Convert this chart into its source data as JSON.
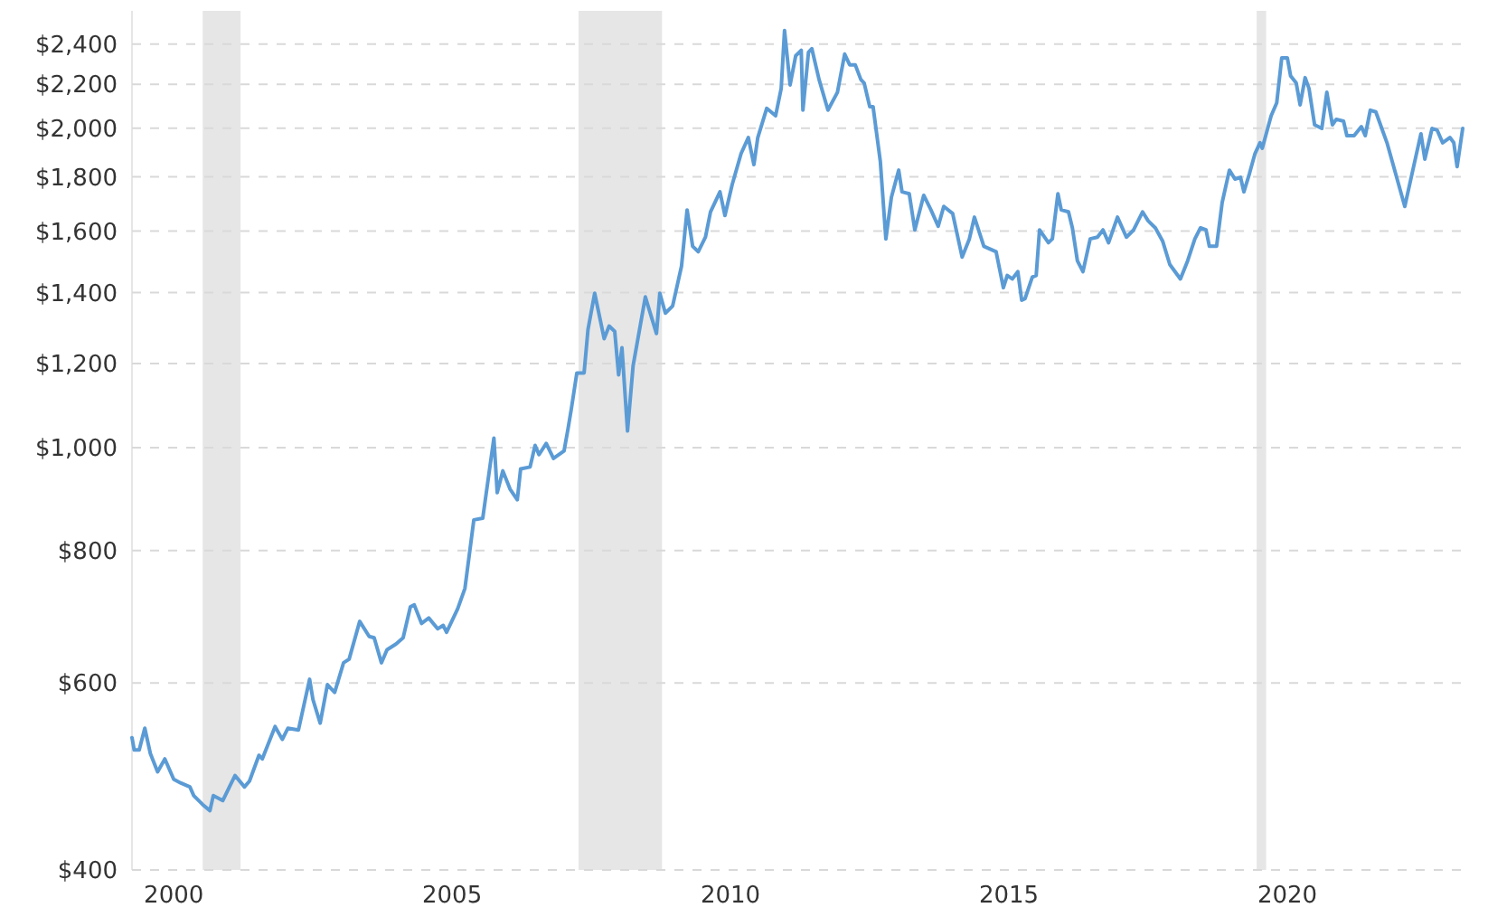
{
  "chart_data": {
    "type": "line",
    "log": true,
    "grid": "y",
    "xlim": [
      1999.25,
      2023.15
    ],
    "xticks": [
      2000,
      2005,
      2010,
      2015,
      2020
    ],
    "ylim": [
      400,
      2580
    ],
    "yticks": [
      {
        "value": 400,
        "label": "$400"
      },
      {
        "value": 600,
        "label": "$600"
      },
      {
        "value": 800,
        "label": "$800"
      },
      {
        "value": 1000,
        "label": "$1,000"
      },
      {
        "value": 1200,
        "label": "$1,200"
      },
      {
        "value": 1400,
        "label": "$1,400"
      },
      {
        "value": 1600,
        "label": "$1,600"
      },
      {
        "value": 1800,
        "label": "$1,800"
      },
      {
        "value": 2000,
        "label": "$2,000"
      },
      {
        "value": 2200,
        "label": "$2,200"
      },
      {
        "value": 2400,
        "label": "$2,400"
      }
    ],
    "bands": [
      {
        "axis": "x",
        "from": 2000.52,
        "to": 2001.2,
        "color": "#e6e6e6"
      },
      {
        "axis": "x",
        "from": 2007.27,
        "to": 2008.77,
        "color": "#e6e6e6"
      },
      {
        "axis": "x",
        "from": 2019.45,
        "to": 2019.62,
        "color": "#e6e6e6"
      }
    ],
    "series": [
      {
        "color": "#5b9bd5",
        "x": [
          1999.25,
          1999.29,
          1999.38,
          1999.48,
          1999.58,
          1999.71,
          1999.84,
          2000.0,
          2000.13,
          2000.29,
          2000.36,
          2000.52,
          2000.65,
          2000.71,
          2000.88,
          2001.1,
          2001.27,
          2001.36,
          2001.53,
          2001.59,
          2001.82,
          2001.95,
          2002.05,
          2002.24,
          2002.44,
          2002.5,
          2002.63,
          2002.76,
          2002.89,
          2003.05,
          2003.15,
          2003.34,
          2003.51,
          2003.6,
          2003.73,
          2003.83,
          2003.99,
          2004.12,
          2004.25,
          2004.32,
          2004.45,
          2004.58,
          2004.74,
          2004.84,
          2004.9,
          2005.1,
          2005.23,
          2005.39,
          2005.55,
          2005.75,
          2005.81,
          2005.91,
          2006.04,
          2006.17,
          2006.23,
          2006.4,
          2006.49,
          2006.56,
          2006.69,
          2006.82,
          2007.01,
          2007.08,
          2007.14,
          2007.24,
          2007.37,
          2007.44,
          2007.56,
          2007.73,
          2007.82,
          2007.92,
          2007.99,
          2008.05,
          2008.15,
          2008.25,
          2008.47,
          2008.67,
          2008.73,
          2008.83,
          2008.96,
          2009.12,
          2009.22,
          2009.32,
          2009.42,
          2009.55,
          2009.64,
          2009.81,
          2009.9,
          2010.03,
          2010.19,
          2010.32,
          2010.42,
          2010.49,
          2010.65,
          2010.81,
          2010.91,
          2010.97,
          2011.07,
          2011.17,
          2011.27,
          2011.3,
          2011.4,
          2011.46,
          2011.59,
          2011.75,
          2011.92,
          2012.05,
          2012.14,
          2012.24,
          2012.34,
          2012.4,
          2012.5,
          2012.56,
          2012.69,
          2012.79,
          2012.89,
          2013.02,
          2013.08,
          2013.21,
          2013.31,
          2013.47,
          2013.6,
          2013.73,
          2013.83,
          2013.99,
          2014.16,
          2014.29,
          2014.38,
          2014.55,
          2014.77,
          2014.9,
          2014.97,
          2015.06,
          2015.16,
          2015.23,
          2015.29,
          2015.42,
          2015.49,
          2015.55,
          2015.71,
          2015.78,
          2015.88,
          2015.94,
          2016.07,
          2016.14,
          2016.23,
          2016.33,
          2016.46,
          2016.59,
          2016.69,
          2016.79,
          2016.95,
          2017.11,
          2017.24,
          2017.4,
          2017.5,
          2017.63,
          2017.76,
          2017.89,
          2018.08,
          2018.21,
          2018.34,
          2018.44,
          2018.54,
          2018.6,
          2018.73,
          2018.83,
          2018.96,
          2019.06,
          2019.16,
          2019.22,
          2019.32,
          2019.42,
          2019.51,
          2019.55,
          2019.71,
          2019.81,
          2019.9,
          2020.0,
          2020.06,
          2020.16,
          2020.23,
          2020.32,
          2020.39,
          2020.49,
          2020.62,
          2020.71,
          2020.81,
          2020.88,
          2021.01,
          2021.07,
          2021.2,
          2021.33,
          2021.4,
          2021.49,
          2021.59,
          2021.79,
          2022.11,
          2022.24,
          2022.4,
          2022.47,
          2022.6,
          2022.69,
          2022.79,
          2022.92,
          2022.99,
          2023.05,
          2023.15
        ],
        "values": [
          533,
          519,
          519,
          544,
          515,
          495,
          509,
          487,
          483,
          479,
          470,
          461,
          455,
          470,
          465,
          491,
          479,
          485,
          513,
          509,
          546,
          531,
          544,
          542,
          605,
          579,
          550,
          598,
          588,
          627,
          632,
          686,
          664,
          662,
          627,
          645,
          653,
          662,
          708,
          711,
          683,
          691,
          675,
          680,
          670,
          705,
          737,
          855,
          858,
          1021,
          907,
          951,
          914,
          893,
          955,
          959,
          1005,
          985,
          1009,
          977,
          993,
          1041,
          1087,
          1176,
          1176,
          1292,
          1398,
          1267,
          1302,
          1287,
          1171,
          1242,
          1037,
          1194,
          1387,
          1281,
          1398,
          1339,
          1360,
          1483,
          1675,
          1548,
          1530,
          1579,
          1668,
          1742,
          1655,
          1770,
          1893,
          1960,
          1848,
          1960,
          2088,
          2055,
          2180,
          2472,
          2197,
          2340,
          2368,
          2080,
          2358,
          2377,
          2223,
          2080,
          2162,
          2349,
          2295,
          2295,
          2223,
          2206,
          2096,
          2096,
          1862,
          1573,
          1722,
          1826,
          1742,
          1735,
          1604,
          1729,
          1675,
          1617,
          1688,
          1662,
          1512,
          1573,
          1649,
          1548,
          1530,
          1415,
          1453,
          1442,
          1465,
          1377,
          1382,
          1448,
          1453,
          1604,
          1560,
          1573,
          1735,
          1675,
          1668,
          1611,
          1500,
          1465,
          1573,
          1579,
          1604,
          1560,
          1649,
          1579,
          1604,
          1668,
          1636,
          1611,
          1566,
          1488,
          1442,
          1500,
          1573,
          1611,
          1604,
          1548,
          1548,
          1702,
          1826,
          1791,
          1798,
          1742,
          1812,
          1893,
          1938,
          1915,
          2055,
          2113,
          2330,
          2330,
          2240,
          2206,
          2104,
          2232,
          2180,
          2015,
          1999,
          2162,
          2015,
          2039,
          2031,
          1968,
          1968,
          2007,
          1968,
          2080,
          2072,
          1938,
          1688,
          1812,
          1976,
          1870,
          1999,
          1992,
          1938,
          1960,
          1938,
          1840,
          1999
        ]
      }
    ]
  }
}
